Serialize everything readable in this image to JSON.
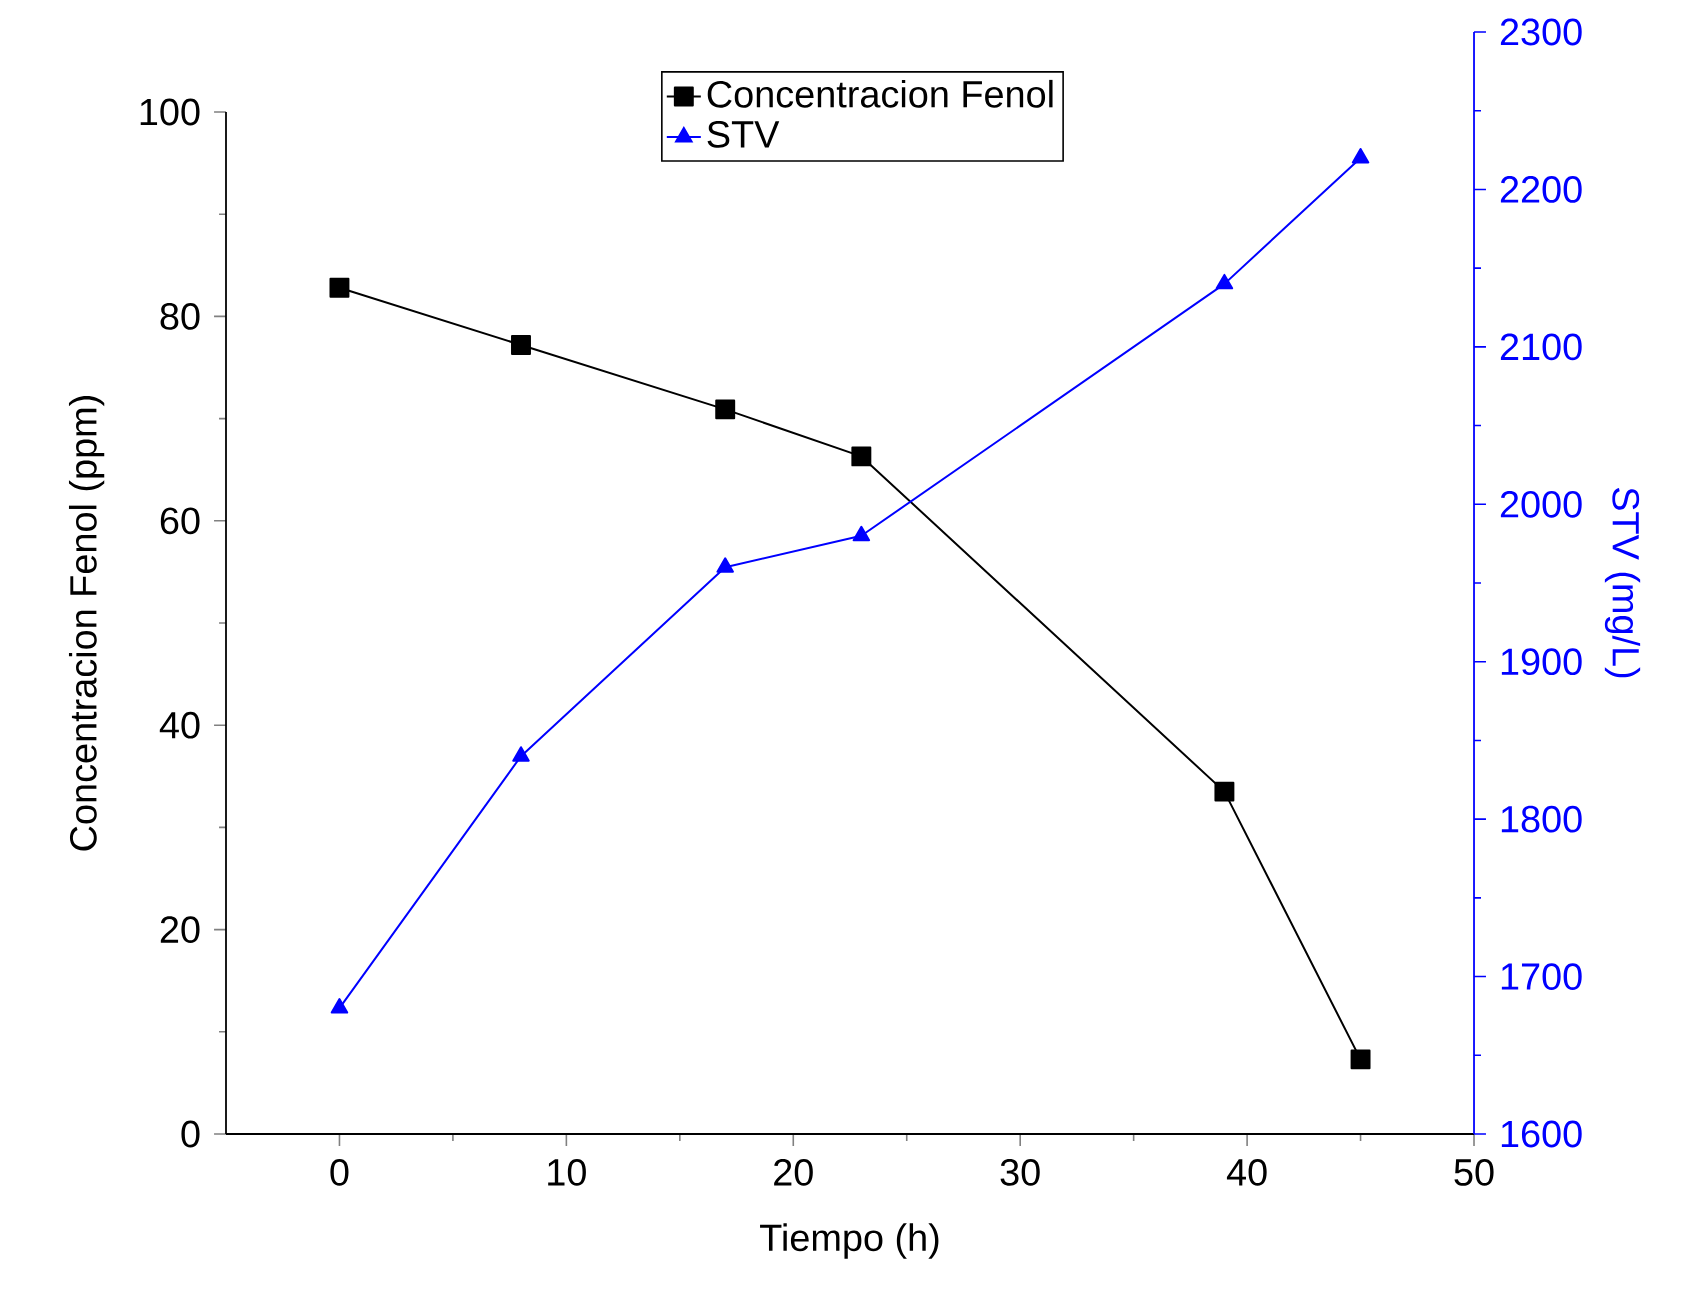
{
  "chart_data": {
    "type": "line",
    "xlabel": "Tiempo (h)",
    "ylabel": "Concentracion Fenol (ppm)",
    "y2label": "STV (mg/L)",
    "x": [
      0,
      8,
      17,
      23,
      39,
      45
    ],
    "series": [
      {
        "name": "Concentracion Fenol",
        "color": "#000000",
        "marker": "square",
        "values": [
          82.8,
          77.2,
          70.9,
          66.3,
          33.5,
          7.3
        ]
      },
      {
        "name": "STV",
        "color": "#0000ff",
        "marker": "triangle",
        "axis": "y2",
        "values": [
          1680,
          1840,
          1960,
          1980,
          2140,
          2220
        ]
      }
    ],
    "xlim": [
      -5,
      50
    ],
    "xticks": [
      0,
      10,
      20,
      30,
      40,
      50
    ],
    "ylim": [
      0,
      100
    ],
    "yticks": [
      0,
      20,
      40,
      60,
      80,
      100
    ],
    "y2lim": [
      1600,
      2300
    ],
    "y2ticks": [
      1600,
      1700,
      1800,
      1900,
      2000,
      2100,
      2200,
      2300
    ],
    "legend": "top",
    "grid": false,
    "line_style": "solid"
  }
}
